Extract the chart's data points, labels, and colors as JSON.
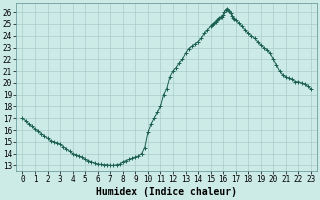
{
  "title": "",
  "xlabel": "Humidex (Indice chaleur)",
  "ylabel": "",
  "background_color": "#cceae6",
  "grid_color": "#aaccc8",
  "line_color": "#1a5f50",
  "marker_color": "#1a5f50",
  "ylim_min": 12.5,
  "ylim_max": 26.8,
  "xlim_min": -0.5,
  "xlim_max": 23.5,
  "yticks": [
    13,
    14,
    15,
    16,
    17,
    18,
    19,
    20,
    21,
    22,
    23,
    24,
    25,
    26
  ],
  "xticks": [
    0,
    1,
    2,
    3,
    4,
    5,
    6,
    7,
    8,
    9,
    10,
    11,
    12,
    13,
    14,
    15,
    16,
    17,
    18,
    19,
    20,
    21,
    22,
    23
  ],
  "x": [
    0,
    0.25,
    0.5,
    0.75,
    1,
    1.25,
    1.5,
    1.75,
    2,
    2.25,
    2.5,
    2.75,
    3,
    3.25,
    3.5,
    3.75,
    4,
    4.25,
    4.5,
    4.75,
    5,
    5.25,
    5.5,
    5.75,
    6,
    6.25,
    6.5,
    6.75,
    7,
    7.25,
    7.5,
    7.75,
    8,
    8.25,
    8.5,
    8.75,
    9,
    9.25,
    9.5,
    9.75,
    10,
    10.25,
    10.5,
    10.75,
    11,
    11.25,
    11.5,
    11.75,
    12,
    12.25,
    12.5,
    12.75,
    13,
    13.25,
    13.5,
    13.75,
    14,
    14.25,
    14.5,
    14.75,
    15,
    15.1,
    15.2,
    15.3,
    15.4,
    15.5,
    15.6,
    15.7,
    15.8,
    15.9,
    16,
    16.1,
    16.2,
    16.3,
    16.4,
    16.5,
    16.6,
    16.7,
    16.8,
    16.9,
    17,
    17.25,
    17.5,
    17.75,
    18,
    18.25,
    18.5,
    18.75,
    19,
    19.25,
    19.5,
    19.75,
    20,
    20.25,
    20.5,
    20.75,
    21,
    21.25,
    21.5,
    21.75,
    22,
    22.25,
    22.5,
    22.75,
    23
  ],
  "y": [
    17.0,
    16.8,
    16.5,
    16.3,
    16.1,
    15.9,
    15.7,
    15.5,
    15.3,
    15.1,
    15.0,
    14.9,
    14.8,
    14.6,
    14.4,
    14.2,
    14.0,
    13.9,
    13.8,
    13.7,
    13.5,
    13.4,
    13.3,
    13.2,
    13.1,
    13.08,
    13.05,
    13.05,
    13.0,
    13.0,
    13.05,
    13.1,
    13.3,
    13.4,
    13.5,
    13.6,
    13.7,
    13.8,
    14.0,
    14.5,
    15.8,
    16.5,
    17.0,
    17.5,
    18.0,
    19.0,
    19.5,
    20.5,
    21.0,
    21.3,
    21.7,
    22.0,
    22.5,
    22.9,
    23.1,
    23.3,
    23.5,
    23.8,
    24.2,
    24.5,
    24.8,
    24.9,
    25.0,
    25.1,
    25.2,
    25.3,
    25.4,
    25.5,
    25.6,
    25.6,
    25.8,
    26.0,
    26.2,
    26.3,
    26.2,
    26.1,
    25.9,
    25.7,
    25.5,
    25.4,
    25.3,
    25.1,
    24.8,
    24.5,
    24.2,
    24.0,
    23.8,
    23.5,
    23.2,
    23.0,
    22.8,
    22.5,
    22.0,
    21.5,
    21.0,
    20.7,
    20.5,
    20.4,
    20.3,
    20.1,
    20.1,
    20.0,
    19.9,
    19.7,
    19.5
  ],
  "tick_fontsize": 5.5,
  "label_fontsize": 7.0
}
